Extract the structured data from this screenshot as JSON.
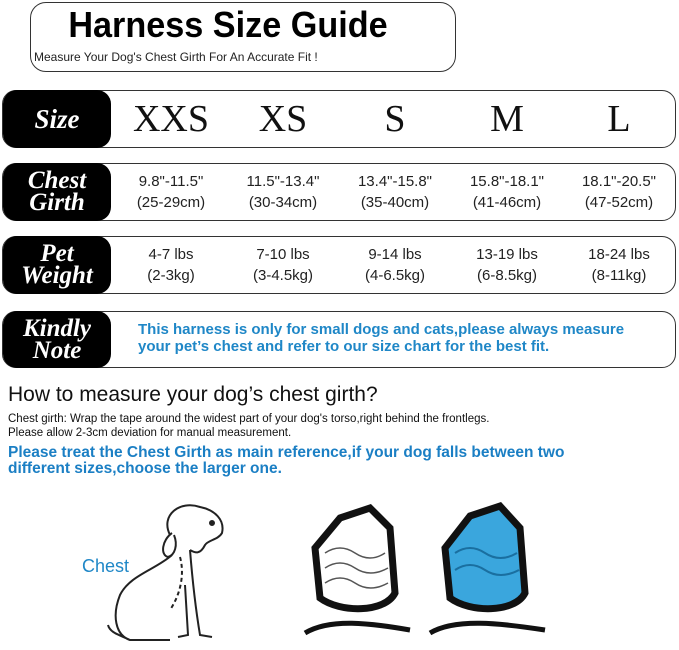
{
  "header": {
    "title": "Harness Size Guide",
    "subtitle": "Measure Your Dog's Chest Girth For An Accurate Fit !"
  },
  "size_row": {
    "label": "Size",
    "sizes": [
      "XXS",
      "XS",
      "S",
      "M",
      "L"
    ]
  },
  "chest_row": {
    "label_line1": "Chest",
    "label_line2": "Girth",
    "values": [
      [
        "9.8\"-11.5\"",
        "(25-29cm)"
      ],
      [
        "11.5\"-13.4\"",
        "(30-34cm)"
      ],
      [
        "13.4\"-15.8\"",
        "(35-40cm)"
      ],
      [
        "15.8\"-18.1\"",
        "(41-46cm)"
      ],
      [
        "18.1\"-20.5\"",
        "(47-52cm)"
      ]
    ]
  },
  "weight_row": {
    "label_line1": "Pet",
    "label_line2": "Weight",
    "values": [
      [
        "4-7 lbs",
        "(2-3kg)"
      ],
      [
        "7-10 lbs",
        "(3-4.5kg)"
      ],
      [
        "9-14 lbs",
        "(4-6.5kg)"
      ],
      [
        "13-19 lbs",
        "(6-8.5kg)"
      ],
      [
        "18-24 lbs",
        "(8-11kg)"
      ]
    ]
  },
  "note_row": {
    "label_line1": "Kindly",
    "label_line2": "Note",
    "line1": "This harness is only for small dogs and cats,please always measure",
    "line2": "your pet’s chest and refer to our size chart for the best fit."
  },
  "measure": {
    "heading": "How to measure your dog’s chest girth?",
    "line1": "Chest girth: Wrap the tape around the widest part of your dog's torso,right behind the frontlegs.",
    "line2": "Please allow 2-3cm deviation for manual measurement.",
    "emphasis1": "Please treat the Chest Girth as main reference,if your dog falls between two",
    "emphasis2": "different sizes,choose the larger one."
  },
  "illustration": {
    "chest_label": "Chest",
    "harness_colors": [
      "#ffffff",
      "#3aa6dd"
    ],
    "accent_blue": "#1f87c7"
  }
}
